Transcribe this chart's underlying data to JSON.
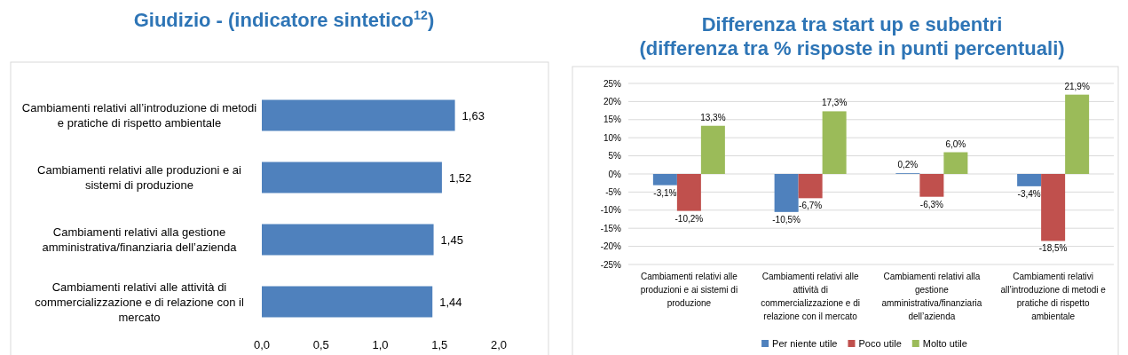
{
  "chart_data": [
    {
      "type": "bar",
      "orientation": "horizontal",
      "title": "Giudizio - (indicatore sintetico$^{12}$)",
      "categories": [
        "Cambiamenti relativi all’introduzione di metodi e pratiche di rispetto ambientale",
        "Cambiamenti relativi alle produzioni e ai sistemi di produzione",
        "Cambiamenti relativi alla gestione amministrativa/finanziaria dell’azienda",
        "Cambiamenti relativi alle attività di commercializzazione e di relazione con il mercato"
      ],
      "values": [
        1.63,
        1.52,
        1.45,
        1.44
      ],
      "value_labels": [
        "1,63",
        "1,52",
        "1,45",
        "1,44"
      ],
      "color": "#4f81bd",
      "xlim": [
        0,
        2
      ],
      "xticks": [
        {
          "value": 0,
          "label": "0,0"
        },
        {
          "value": 0.5,
          "label": "0,5"
        },
        {
          "value": 1,
          "label": "1,0"
        },
        {
          "value": 1.5,
          "label": "1,5"
        },
        {
          "value": 2,
          "label": "2,0"
        }
      ],
      "grid": false
    },
    {
      "type": "bar",
      "title": "Differenza tra start up e subentri\n(differenza tra % risposte in punti percentuali)",
      "categories": [
        "Cambiamenti relativi alle produzioni e ai sistemi di produzione",
        "Cambiamenti relativi alle attività di commercializzazione e di relazione con il mercato",
        "Cambiamenti relativi alla gestione amministrativa/finanziaria dell’azienda",
        "Cambiamenti relativi all’introduzione di metodi e pratiche di rispetto ambientale"
      ],
      "series": [
        {
          "name": "Per niente utile",
          "color": "#4f81bd",
          "values": [
            -3.1,
            -10.5,
            0.2,
            -3.4
          ],
          "value_labels": [
            "-3,1%",
            "-10,5%",
            "0,2%",
            "-3,4%"
          ]
        },
        {
          "name": "Poco utile",
          "color": "#c0504d",
          "values": [
            -10.2,
            -6.7,
            -6.3,
            -18.5
          ],
          "value_labels": [
            "-10,2%",
            "-6,7%",
            "-6,3%",
            "-18,5%"
          ]
        },
        {
          "name": "Molto utile",
          "color": "#9bbb59",
          "values": [
            13.3,
            17.3,
            6.0,
            21.9
          ],
          "value_labels": [
            "13,3%",
            "17,3%",
            "6,0%",
            "21,9%"
          ]
        }
      ],
      "ylim": [
        -25,
        25
      ],
      "yticks": [
        {
          "value": -25,
          "label": "-25%"
        },
        {
          "value": -20,
          "label": "-20%"
        },
        {
          "value": -15,
          "label": "-15%"
        },
        {
          "value": -10,
          "label": "-10%"
        },
        {
          "value": -5,
          "label": "-5%"
        },
        {
          "value": 0,
          "label": "0%"
        },
        {
          "value": 5,
          "label": "5%"
        },
        {
          "value": 10,
          "label": "10%"
        },
        {
          "value": 15,
          "label": "15%"
        },
        {
          "value": 20,
          "label": "20%"
        },
        {
          "value": 25,
          "label": "25%"
        }
      ],
      "grid": "y",
      "legend": "bottom"
    }
  ]
}
